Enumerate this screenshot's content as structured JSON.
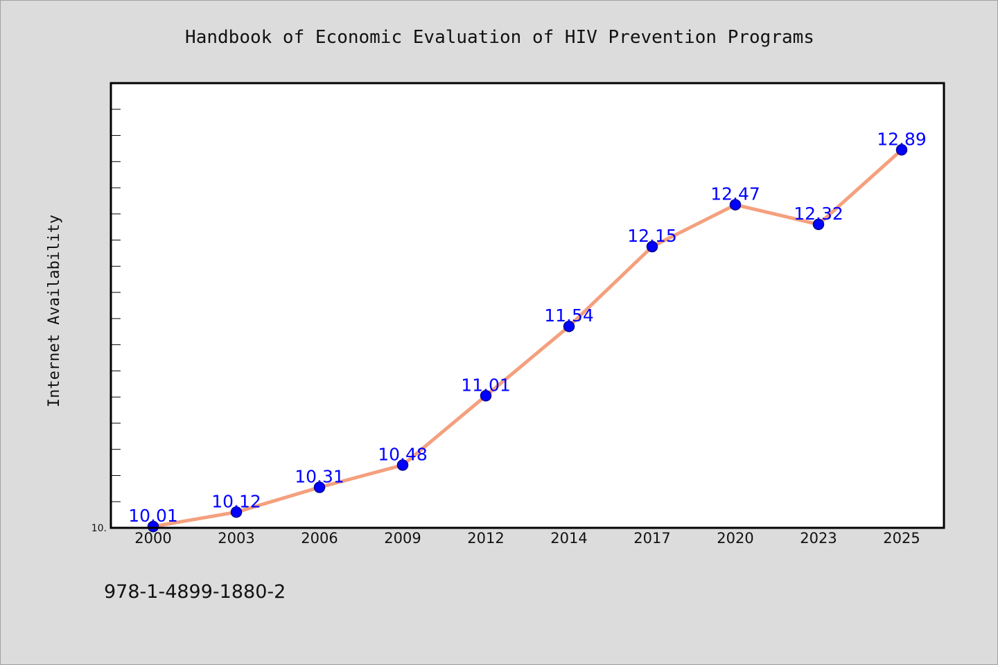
{
  "chart_data": {
    "type": "line",
    "title": "Handbook of Economic Evaluation of HIV Prevention Programs",
    "xlabel": "",
    "ylabel": "Internet Availability",
    "categories": [
      "2000",
      "2003",
      "2006",
      "2009",
      "2012",
      "2014",
      "2017",
      "2020",
      "2023",
      "2025"
    ],
    "values": [
      10.01,
      10.12,
      10.31,
      10.48,
      11.01,
      11.54,
      12.15,
      12.47,
      12.32,
      12.89
    ],
    "data_labels": [
      "10.01",
      "10.12",
      "10.31",
      "10.48",
      "11.01",
      "11.54",
      "12.15",
      "12.47",
      "12.32",
      "12.89"
    ],
    "ytick_labels": [
      "10."
    ],
    "ylim": [
      10.0,
      13.4
    ],
    "grid": false,
    "legend": "none",
    "colors": {
      "line": "#f4a07e",
      "marker": "#0000ff",
      "marker_edge": "#00008b",
      "data_label": "#0000ff",
      "background": "#dcdcdc",
      "plot_background": "#ffffff"
    }
  },
  "footer": {
    "isbn": "978-1-4899-1880-2"
  }
}
